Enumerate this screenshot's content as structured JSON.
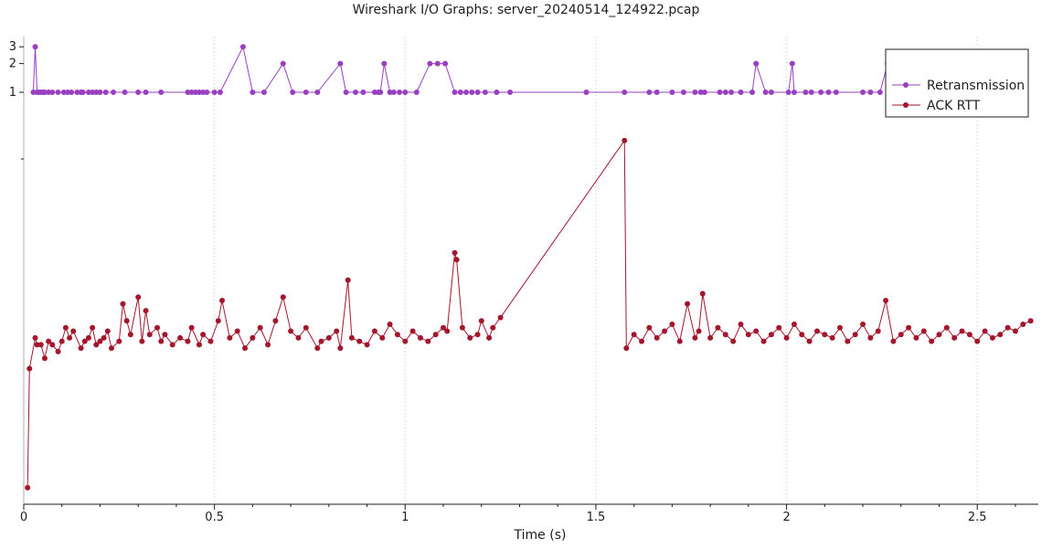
{
  "title": "Wireshark I/O Graphs: server_20240514_124922.pcap",
  "chart_data": {
    "type": "line",
    "title": "Wireshark I/O Graphs: server_20240514_124922.pcap",
    "xlabel": "Time (s)",
    "ylabel": "",
    "xlim": [
      0,
      2.66
    ],
    "x_ticks": [
      "0",
      "0.5",
      "1",
      "1.5",
      "2",
      "2.5"
    ],
    "y_ticks_retransmission": [
      "1",
      "2",
      "3"
    ],
    "grid": "vertical dotted",
    "legend_position": "top-right",
    "series": [
      {
        "name": "Retransmission",
        "color": "#9a3fc2",
        "scale": "log",
        "x": [
          0.025,
          0.03,
          0.035,
          0.04,
          0.045,
          0.05,
          0.055,
          0.065,
          0.075,
          0.09,
          0.105,
          0.115,
          0.125,
          0.14,
          0.15,
          0.155,
          0.17,
          0.18,
          0.19,
          0.2,
          0.215,
          0.235,
          0.265,
          0.3,
          0.32,
          0.36,
          0.43,
          0.44,
          0.45,
          0.46,
          0.47,
          0.48,
          0.5,
          0.515,
          0.575,
          0.6,
          0.63,
          0.68,
          0.705,
          0.74,
          0.77,
          0.83,
          0.845,
          0.87,
          0.89,
          0.92,
          0.93,
          0.935,
          0.945,
          0.96,
          0.97,
          0.985,
          1.0,
          1.03,
          1.065,
          1.085,
          1.105,
          1.13,
          1.145,
          1.16,
          1.175,
          1.19,
          1.21,
          1.24,
          1.275,
          1.475,
          1.575,
          1.64,
          1.66,
          1.7,
          1.73,
          1.76,
          1.775,
          1.785,
          1.825,
          1.84,
          1.855,
          1.88,
          1.91,
          1.92,
          1.945,
          1.96,
          2.005,
          2.015,
          2.02,
          2.05,
          2.065,
          2.09,
          2.11,
          2.13,
          2.2,
          2.22,
          2.245,
          2.265
        ],
        "values": [
          1,
          3,
          1,
          1,
          1,
          1,
          1,
          1,
          1,
          1,
          1,
          1,
          1,
          1,
          1,
          1,
          1,
          1,
          1,
          1,
          1,
          1,
          1,
          1,
          1,
          1,
          1,
          1,
          1,
          1,
          1,
          1,
          1,
          1,
          3,
          1,
          1,
          2,
          1,
          1,
          1,
          2,
          1,
          1,
          1,
          1,
          1,
          1,
          2,
          1,
          1,
          1,
          1,
          1,
          2,
          2,
          2,
          1,
          1,
          1,
          1,
          1,
          1,
          1,
          1,
          1,
          1,
          1,
          1,
          1,
          1,
          1,
          1,
          1,
          1,
          1,
          1,
          1,
          1,
          2,
          1,
          1,
          1,
          2,
          1,
          1,
          1,
          1,
          1,
          1,
          1,
          1,
          1,
          2
        ]
      },
      {
        "name": "ACK RTT",
        "color": "#a3162b",
        "x": [
          0.01,
          0.015,
          0.03,
          0.035,
          0.045,
          0.055,
          0.065,
          0.075,
          0.09,
          0.1,
          0.11,
          0.12,
          0.13,
          0.15,
          0.16,
          0.17,
          0.18,
          0.19,
          0.2,
          0.21,
          0.22,
          0.23,
          0.25,
          0.26,
          0.27,
          0.28,
          0.3,
          0.31,
          0.32,
          0.33,
          0.35,
          0.36,
          0.37,
          0.39,
          0.41,
          0.43,
          0.44,
          0.46,
          0.47,
          0.49,
          0.51,
          0.52,
          0.54,
          0.56,
          0.58,
          0.6,
          0.62,
          0.64,
          0.66,
          0.68,
          0.7,
          0.72,
          0.74,
          0.77,
          0.78,
          0.8,
          0.82,
          0.83,
          0.85,
          0.86,
          0.88,
          0.9,
          0.92,
          0.94,
          0.96,
          0.98,
          1.0,
          1.02,
          1.04,
          1.06,
          1.08,
          1.1,
          1.11,
          1.13,
          1.135,
          1.15,
          1.17,
          1.19,
          1.2,
          1.22,
          1.23,
          1.25,
          1.575,
          1.58,
          1.6,
          1.62,
          1.64,
          1.66,
          1.68,
          1.7,
          1.72,
          1.74,
          1.76,
          1.77,
          1.78,
          1.8,
          1.82,
          1.84,
          1.86,
          1.88,
          1.9,
          1.92,
          1.94,
          1.96,
          1.98,
          2.0,
          2.02,
          2.04,
          2.06,
          2.08,
          2.1,
          2.12,
          2.14,
          2.16,
          2.18,
          2.2,
          2.22,
          2.24,
          2.26,
          2.28,
          2.3,
          2.32,
          2.34,
          2.36,
          2.38,
          2.4,
          2.42,
          2.44,
          2.46,
          2.48,
          2.5,
          2.52,
          2.54,
          2.56,
          2.58,
          2.6,
          2.62,
          2.64
        ],
        "values": [
          0.15,
          1.9,
          2.35,
          2.25,
          2.25,
          2.05,
          2.3,
          2.25,
          2.15,
          2.3,
          2.5,
          2.35,
          2.45,
          2.2,
          2.3,
          2.35,
          2.5,
          2.25,
          2.3,
          2.35,
          2.45,
          2.2,
          2.3,
          2.85,
          2.6,
          2.4,
          2.95,
          2.3,
          2.75,
          2.4,
          2.5,
          2.3,
          2.4,
          2.25,
          2.35,
          2.3,
          2.5,
          2.25,
          2.4,
          2.3,
          2.6,
          2.9,
          2.35,
          2.45,
          2.2,
          2.35,
          2.5,
          2.25,
          2.6,
          2.95,
          2.45,
          2.35,
          2.5,
          2.2,
          2.3,
          2.35,
          2.45,
          2.2,
          3.2,
          2.35,
          2.3,
          2.25,
          2.45,
          2.35,
          2.55,
          2.4,
          2.3,
          2.45,
          2.35,
          2.3,
          2.4,
          2.5,
          2.45,
          3.6,
          3.5,
          2.5,
          2.35,
          2.4,
          2.6,
          2.35,
          2.5,
          2.65,
          5.25,
          2.2,
          2.4,
          2.3,
          2.5,
          2.35,
          2.45,
          2.55,
          2.3,
          2.85,
          2.35,
          2.45,
          3.0,
          2.35,
          2.5,
          2.4,
          2.3,
          2.55,
          2.4,
          2.45,
          2.3,
          2.4,
          2.5,
          2.35,
          2.55,
          2.4,
          2.3,
          2.45,
          2.4,
          2.35,
          2.5,
          2.3,
          2.4,
          2.55,
          2.35,
          2.45,
          2.9,
          2.3,
          2.4,
          2.5,
          2.35,
          2.45,
          2.3,
          2.4,
          2.5,
          2.35,
          2.45,
          2.4,
          2.3,
          2.45,
          2.35,
          2.4,
          2.5,
          2.45,
          2.55,
          2.6
        ]
      }
    ]
  }
}
